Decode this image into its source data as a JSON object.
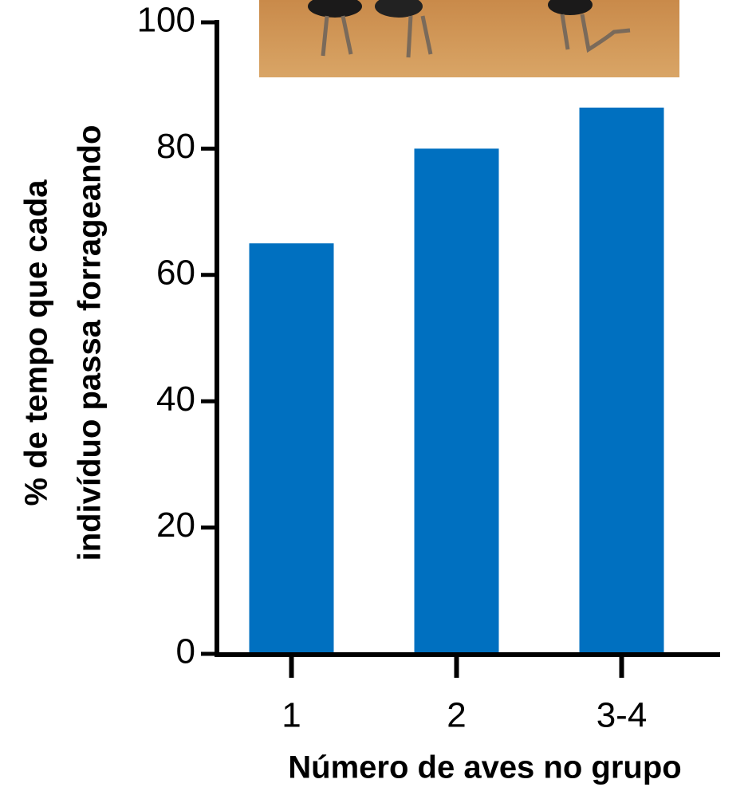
{
  "chart_data": {
    "type": "bar",
    "categories": [
      "1",
      "2",
      "3-4"
    ],
    "values": [
      65,
      80,
      86.5
    ],
    "color": "#0070c0",
    "ylim": [
      0,
      100
    ],
    "yticks": [
      0,
      20,
      40,
      60,
      80,
      100
    ],
    "xlabel": "Número de aves no grupo",
    "ylabel": [
      "% de tempo que cada",
      "indivíduo passa forrageando"
    ],
    "grid": false
  }
}
